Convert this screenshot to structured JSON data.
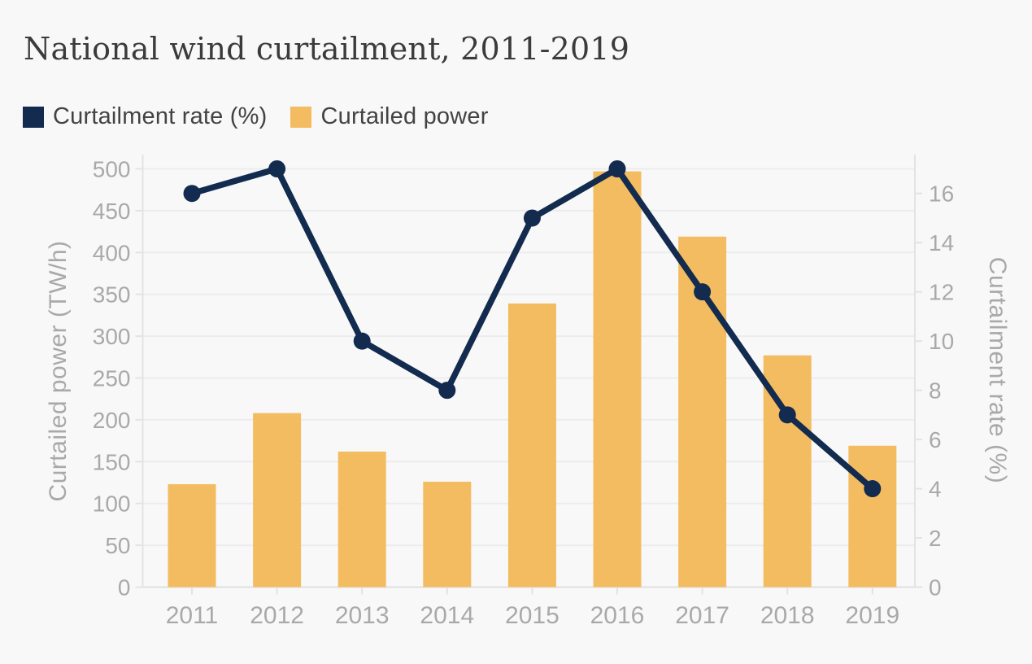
{
  "chart_data": {
    "type": "bar+line",
    "title": "National wind curtailment, 2011-2019",
    "categories": [
      "2011",
      "2012",
      "2013",
      "2014",
      "2015",
      "2016",
      "2017",
      "2018",
      "2019"
    ],
    "series": [
      {
        "name": "Curtailment rate (%)",
        "type": "line",
        "axis": "right",
        "color": "#122b4e",
        "values": [
          16,
          17,
          10,
          8,
          15,
          17,
          12,
          7,
          4
        ]
      },
      {
        "name": "Curtailed power",
        "type": "bar",
        "axis": "left",
        "color": "#f3bc61",
        "values": [
          123,
          208,
          162,
          126,
          339,
          497,
          419,
          277,
          169
        ]
      }
    ],
    "left_axis": {
      "title": "Curtailed power (TW/h)",
      "ticks": [
        0,
        50,
        100,
        150,
        200,
        250,
        300,
        350,
        400,
        450,
        500
      ],
      "range": [
        0,
        500
      ]
    },
    "right_axis": {
      "title": "Curtailment rate (%)",
      "ticks": [
        0,
        2,
        4,
        6,
        8,
        10,
        12,
        14,
        16
      ],
      "range": [
        0,
        17
      ]
    },
    "grid": true,
    "legend_position": "top-left",
    "background_color": "#f8f8f8"
  }
}
